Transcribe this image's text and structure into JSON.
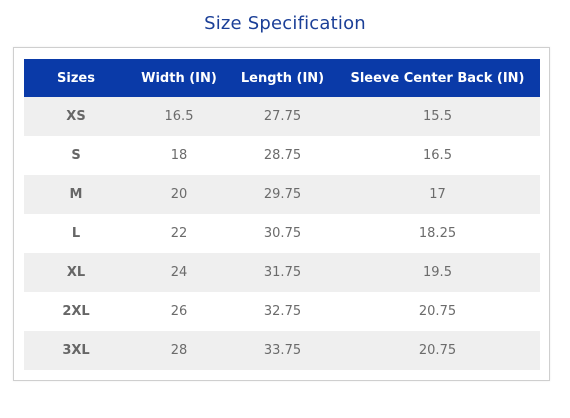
{
  "title": "Size Specification",
  "table": {
    "header": [
      "Sizes",
      "Width (IN)",
      "Length (IN)",
      "Sleeve Center Back (IN)"
    ],
    "rows": [
      [
        "XS",
        "16.5",
        "27.75",
        "15.5"
      ],
      [
        "S",
        "18",
        "28.75",
        "16.5"
      ],
      [
        "M",
        "20",
        "29.75",
        "17"
      ],
      [
        "L",
        "22",
        "30.75",
        "18.25"
      ],
      [
        "XL",
        "24",
        "31.75",
        "19.5"
      ],
      [
        "2XL",
        "26",
        "32.75",
        "20.75"
      ],
      [
        "3XL",
        "28",
        "33.75",
        "20.75"
      ]
    ]
  }
}
